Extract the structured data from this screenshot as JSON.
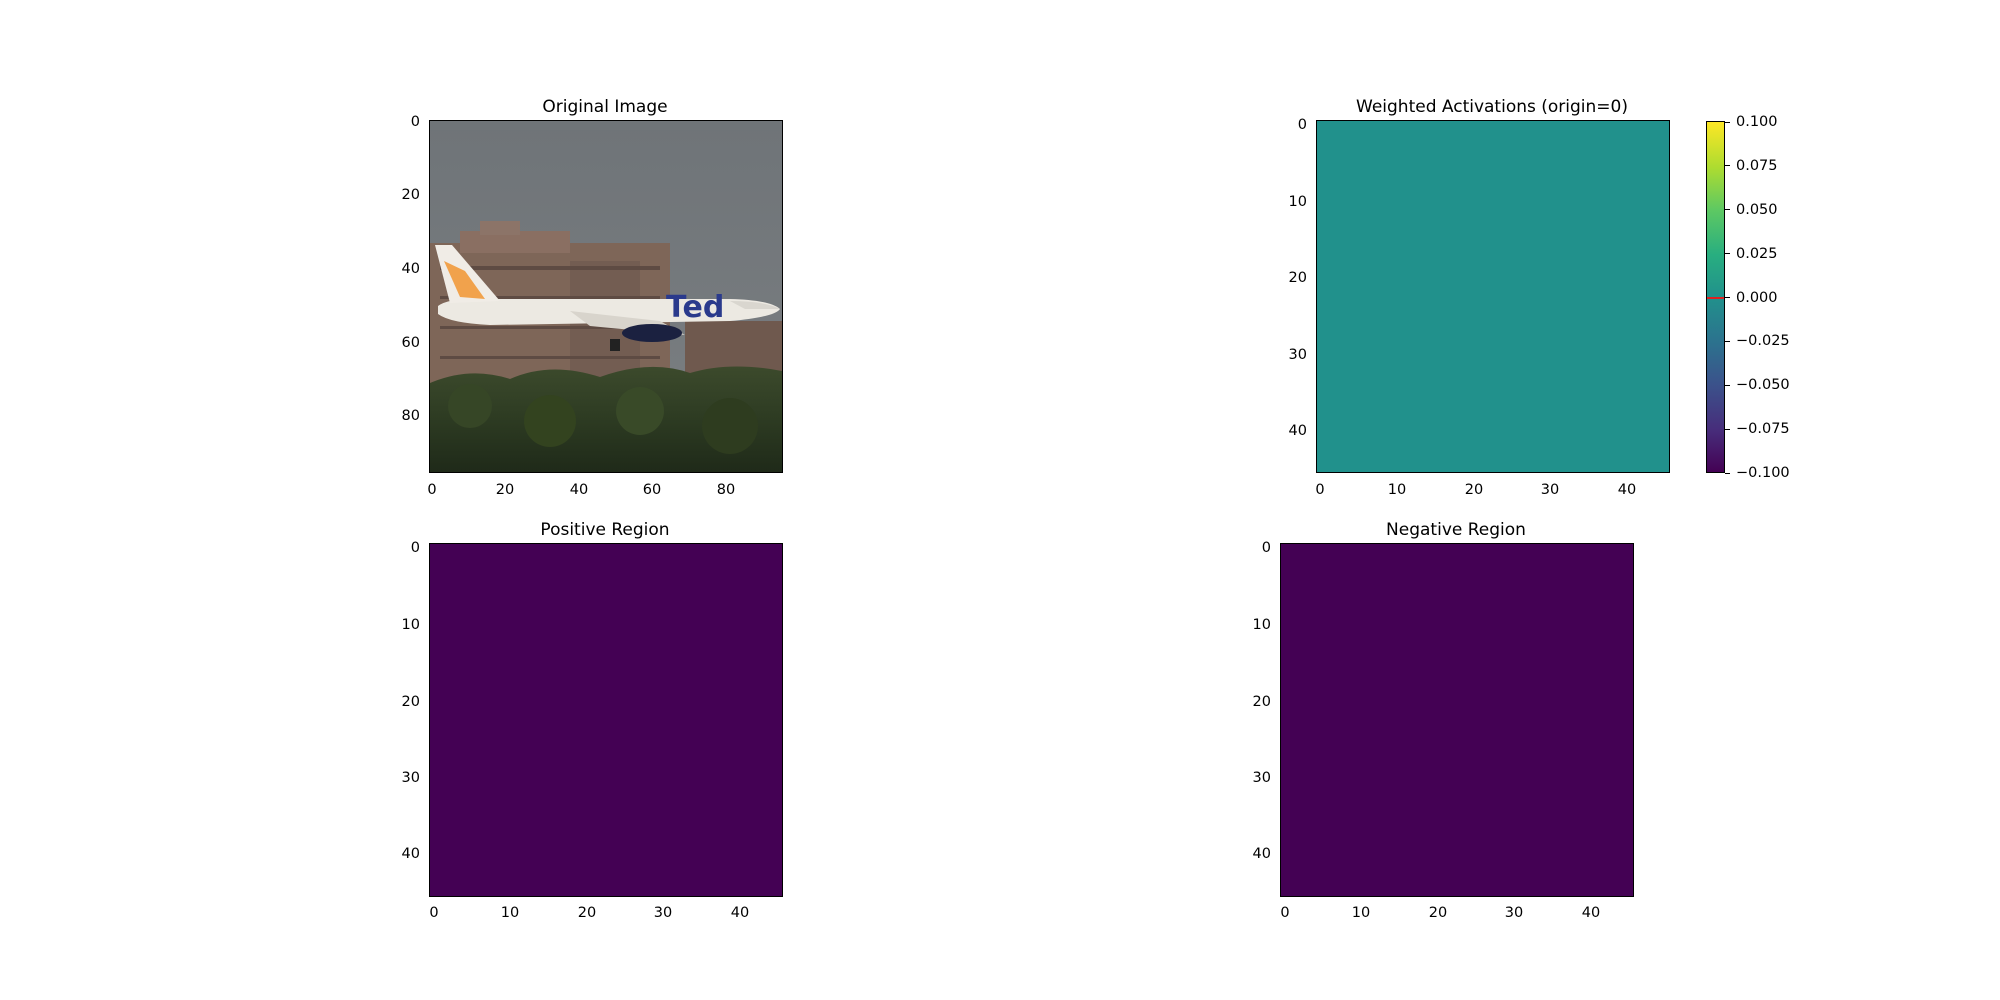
{
  "chart_data": [
    {
      "type": "heatmap",
      "title": "Original Image",
      "image_content": "aircraft in flight with \"Ted\" livery over buildings and trees",
      "xticks": [
        0,
        20,
        40,
        60,
        80
      ],
      "yticks": [
        0,
        20,
        40,
        60,
        80
      ],
      "xlim": [
        -0.5,
        95.5
      ],
      "ylim": [
        95.5,
        -0.5
      ]
    },
    {
      "type": "heatmap",
      "title": "Weighted Activations (origin=0)",
      "xticks": [
        0,
        10,
        20,
        30,
        40
      ],
      "yticks": [
        0,
        10,
        20,
        30,
        40
      ],
      "xlim": [
        -0.5,
        45.5
      ],
      "ylim": [
        45.5,
        -0.5
      ],
      "uniform_value": 0.0,
      "fill_color": "#21918c",
      "colorbar": {
        "colormap": "viridis",
        "vmin": -0.1,
        "vmax": 0.1,
        "ticks": [
          "0.100",
          "0.075",
          "0.050",
          "0.025",
          "0.000",
          "−0.025",
          "−0.050",
          "−0.075",
          "−0.100"
        ],
        "tick_values": [
          0.1,
          0.075,
          0.05,
          0.025,
          0.0,
          -0.025,
          -0.05,
          -0.075,
          -0.1
        ],
        "origin_marker_value": 0.0,
        "origin_marker_color": "#e02020"
      }
    },
    {
      "type": "heatmap",
      "title": "Positive Region",
      "xticks": [
        0,
        10,
        20,
        30,
        40
      ],
      "yticks": [
        0,
        10,
        20,
        30,
        40
      ],
      "xlim": [
        -0.5,
        45.5
      ],
      "ylim": [
        45.5,
        -0.5
      ],
      "fill_color": "#440154"
    },
    {
      "type": "heatmap",
      "title": "Negative Region",
      "xticks": [
        0,
        10,
        20,
        30,
        40
      ],
      "yticks": [
        0,
        10,
        20,
        30,
        40
      ],
      "xlim": [
        -0.5,
        45.5
      ],
      "ylim": [
        45.5,
        -0.5
      ],
      "fill_color": "#440154"
    }
  ]
}
